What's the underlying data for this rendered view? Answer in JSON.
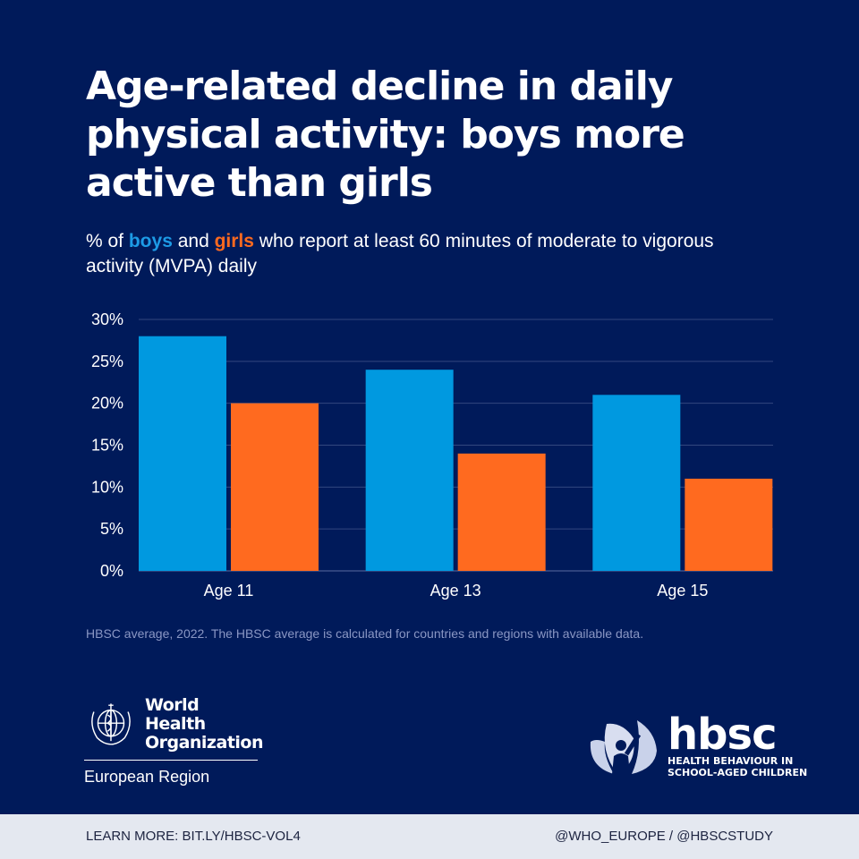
{
  "title": "Age-related decline in daily physical activity: boys more active than girls",
  "subtitle": {
    "prefix": "% of ",
    "boys": "boys",
    "and": " and ",
    "girls": "girls",
    "suffix": " who report at least 60 minutes of moderate to vigorous activity (MVPA) daily"
  },
  "note": "HBSC average, 2022. The HBSC average is calculated for countries and regions with available data.",
  "who": {
    "name_line1": "World Health",
    "name_line2": "Organization",
    "region": "European Region"
  },
  "hbsc": {
    "word": "hbsc",
    "sub_line1": "HEALTH BEHAVIOUR IN",
    "sub_line2": "SCHOOL-AGED CHILDREN"
  },
  "footer": {
    "learn_more": "LEARN MORE: BIT.LY/HBSC-VOL4",
    "handles": "@WHO_EUROPE / @HBSCSTUDY"
  },
  "colors": {
    "background": "#001a5a",
    "boys": "#0099e0",
    "girls": "#ff6a1f",
    "grid": "#33477f"
  },
  "chart_data": {
    "type": "bar",
    "title": "Age-related decline in daily physical activity: boys more active than girls",
    "xlabel": "",
    "ylabel": "",
    "categories": [
      "Age 11",
      "Age 13",
      "Age 15"
    ],
    "series": [
      {
        "name": "boys",
        "color": "#0099e0",
        "values": [
          28,
          24,
          21
        ]
      },
      {
        "name": "girls",
        "color": "#ff6a1f",
        "values": [
          20,
          14,
          11
        ]
      }
    ],
    "ylim": [
      0,
      30
    ],
    "yticks": [
      0,
      5,
      10,
      15,
      20,
      25,
      30
    ],
    "ytick_labels": [
      "0%",
      "5%",
      "10%",
      "15%",
      "20%",
      "25%",
      "30%"
    ],
    "grid": true,
    "legend": "in subtitle"
  }
}
